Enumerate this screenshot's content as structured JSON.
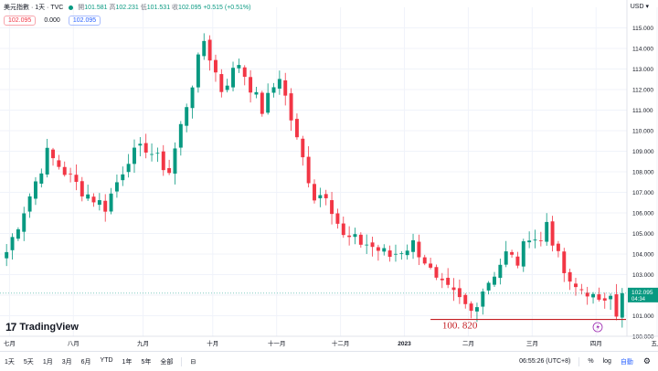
{
  "legend": {
    "title": "美元指數 · 1天 · TVC",
    "o_label": "開",
    "o_value": "101.581",
    "h_label": "高",
    "h_value": "102.231",
    "l_label": "低",
    "l_value": "101.531",
    "c_label": "收",
    "c_value": "102.095",
    "change": "+0.515 (+0.51%)"
  },
  "badges": {
    "sell": "102.095",
    "spread": "0.000",
    "buy": "102.095"
  },
  "currency": "USD",
  "brand": {
    "mark": "17",
    "name": "TradingView"
  },
  "annotation": {
    "label": "100. 820",
    "value": 100.82
  },
  "price_label": {
    "price": "102.095",
    "countdown": "04:34",
    "value": 102.095
  },
  "toolbar": {
    "ranges": [
      "1天",
      "5天",
      "1月",
      "3月",
      "6月",
      "YTD",
      "1年",
      "5年",
      "全部"
    ],
    "time": "06:55:26 (UTC+8)",
    "pct": "%",
    "log": "log",
    "auto": "自動"
  },
  "colors": {
    "up": "#089981",
    "down": "#f23645",
    "annotation": "#c41d22",
    "grid": "#f0f3fa"
  },
  "chart_data": {
    "type": "candlestick",
    "ylim": [
      100,
      116
    ],
    "yticks": [
      "100.000",
      "101.000",
      "102.000",
      "103.000",
      "104.000",
      "105.000",
      "106.000",
      "107.000",
      "108.000",
      "109.000",
      "110.000",
      "111.000",
      "112.000",
      "113.000",
      "114.000",
      "115.000"
    ],
    "xticks": [
      {
        "label": "七月",
        "pos": 0.5
      },
      {
        "label": "八月",
        "pos": 11.5
      },
      {
        "label": "九月",
        "pos": 23.5
      },
      {
        "label": "十月",
        "pos": 35.5
      },
      {
        "label": "十一月",
        "pos": 46.5
      },
      {
        "label": "十二月",
        "pos": 57.5
      },
      {
        "label": "2023",
        "pos": 68.5
      },
      {
        "label": "二月",
        "pos": 79.5
      },
      {
        "label": "三月",
        "pos": 90.5
      },
      {
        "label": "四月",
        "pos": 101.5
      },
      {
        "label": "五月",
        "pos": 112.0
      }
    ],
    "anchors": [
      [
        0,
        104.1
      ],
      [
        7,
        108.9
      ],
      [
        13,
        107.1
      ],
      [
        17,
        106.3
      ],
      [
        21,
        108.7
      ],
      [
        24,
        109.2
      ],
      [
        28,
        108.0
      ],
      [
        31,
        111.3
      ],
      [
        34,
        114.4
      ],
      [
        37,
        112.0
      ],
      [
        40,
        113.3
      ],
      [
        44,
        111.0
      ],
      [
        47,
        112.7
      ],
      [
        50,
        109.5
      ],
      [
        53,
        106.8
      ],
      [
        55,
        107.0
      ],
      [
        58,
        104.8
      ],
      [
        62,
        104.5
      ],
      [
        66,
        103.9
      ],
      [
        70,
        104.5
      ],
      [
        72,
        103.7
      ],
      [
        74,
        102.6
      ],
      [
        77,
        102.0
      ],
      [
        80,
        101.2
      ],
      [
        82,
        102.3
      ],
      [
        84,
        103.1
      ],
      [
        86,
        104.0
      ],
      [
        88,
        103.6
      ],
      [
        90,
        105.0
      ],
      [
        92,
        104.6
      ],
      [
        93,
        105.6
      ],
      [
        95,
        103.8
      ],
      [
        97,
        102.4
      ],
      [
        100,
        102.2
      ],
      [
        102,
        101.5
      ],
      [
        104,
        102.3
      ],
      [
        105,
        101.2
      ],
      [
        106,
        102.1
      ]
    ],
    "candles": 107
  }
}
